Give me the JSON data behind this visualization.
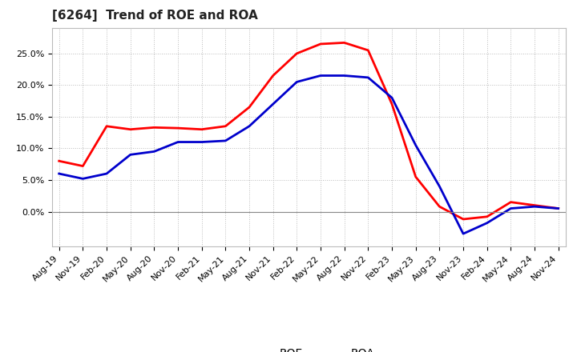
{
  "title": "[6264]  Trend of ROE and ROA",
  "title_fontsize": 11,
  "background_color": "#ffffff",
  "plot_bg_color": "#ffffff",
  "grid_color": "#bbbbbb",
  "x_labels": [
    "Aug-19",
    "Nov-19",
    "Feb-20",
    "May-20",
    "Aug-20",
    "Nov-20",
    "Feb-21",
    "May-21",
    "Aug-21",
    "Nov-21",
    "Feb-22",
    "May-22",
    "Aug-22",
    "Nov-22",
    "Feb-23",
    "May-23",
    "Aug-23",
    "Nov-23",
    "Feb-24",
    "May-24",
    "Aug-24",
    "Nov-24"
  ],
  "roe_values": [
    8.0,
    7.2,
    13.5,
    13.0,
    13.3,
    13.2,
    13.0,
    13.5,
    16.5,
    21.5,
    25.0,
    26.5,
    26.7,
    25.5,
    17.0,
    5.5,
    0.8,
    -1.2,
    -0.8,
    1.5,
    1.0,
    0.5
  ],
  "roa_values": [
    6.0,
    5.2,
    6.0,
    9.0,
    9.5,
    11.0,
    11.0,
    11.2,
    13.5,
    17.0,
    20.5,
    21.5,
    21.5,
    21.2,
    18.0,
    10.5,
    4.0,
    -3.5,
    -1.8,
    0.5,
    0.8,
    0.5
  ],
  "roe_color": "#ff0000",
  "roa_color": "#0000cc",
  "line_width": 2.0,
  "ylim": [
    -5.5,
    29
  ],
  "yticks": [
    0.0,
    5.0,
    10.0,
    15.0,
    20.0,
    25.0
  ],
  "legend_labels": [
    "ROE",
    "ROA"
  ],
  "tick_fontsize": 8,
  "legend_fontsize": 10
}
